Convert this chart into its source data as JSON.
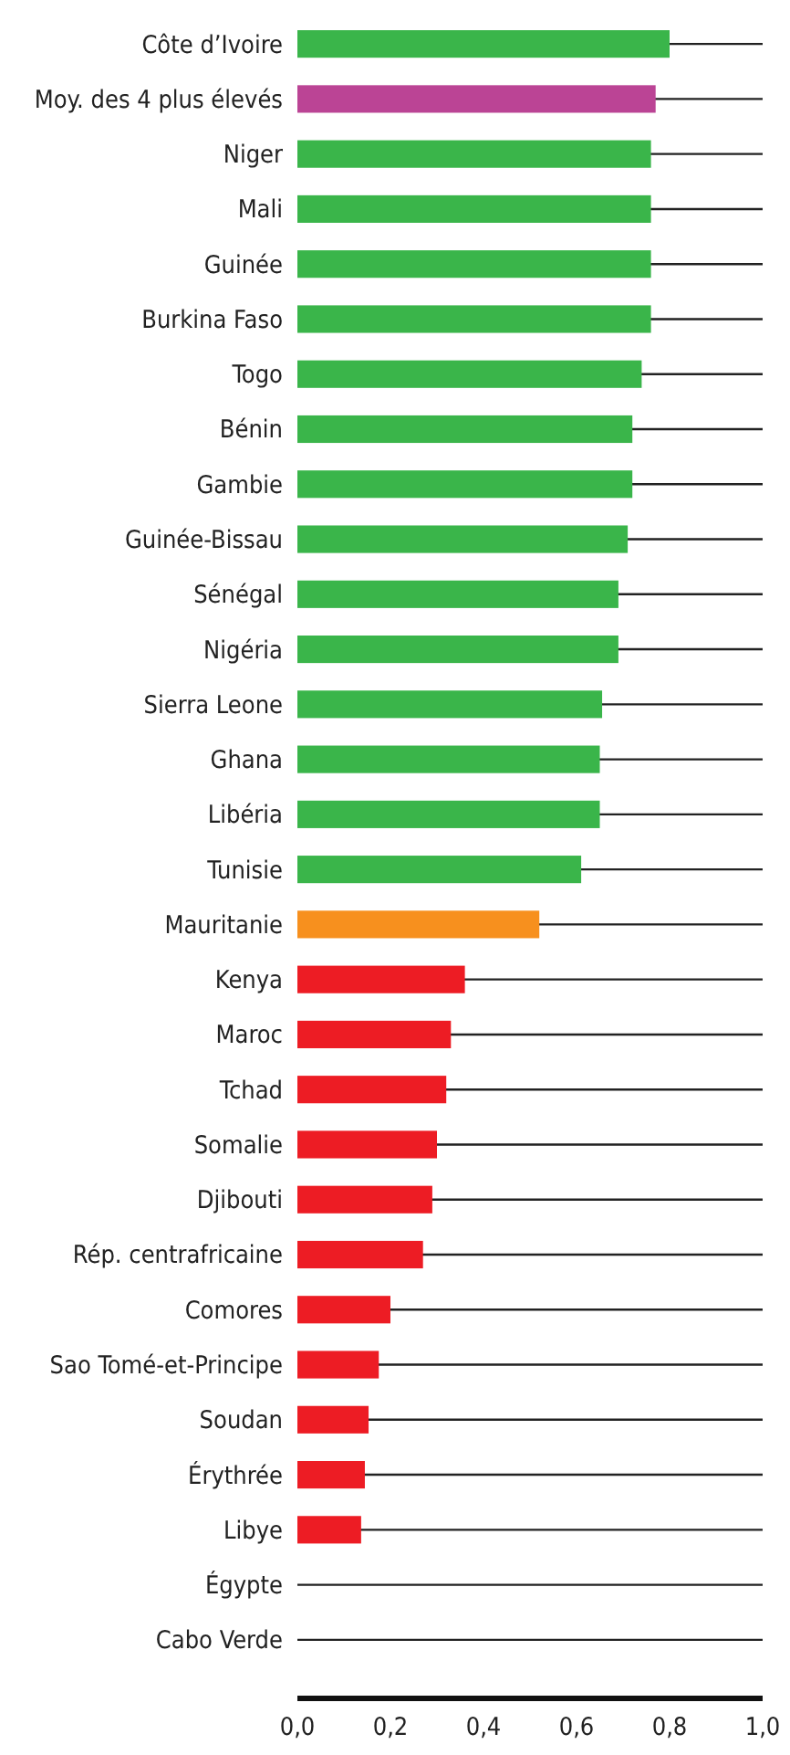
{
  "chart_data": {
    "type": "bar",
    "orientation": "horizontal",
    "categories": [
      "Côte d’Ivoire",
      "Moy. des 4 plus élevés",
      "Niger",
      "Mali",
      "Guinée",
      "Burkina Faso",
      "Togo",
      "Bénin",
      "Gambie",
      "Guinée-Bissau",
      "Sénégal",
      "Nigéria",
      "Sierra Leone",
      "Ghana",
      "Libéria",
      "Tunisie",
      "Mauritanie",
      "Kenya",
      "Maroc",
      "Tchad",
      "Somalie",
      "Djibouti",
      "Rép. centrafricaine",
      "Comores",
      "Sao Tomé-et-Principe",
      "Soudan",
      "Érythrée",
      "Libye",
      "Égypte",
      "Cabo Verde"
    ],
    "values": [
      0.8,
      0.77,
      0.76,
      0.76,
      0.76,
      0.76,
      0.74,
      0.72,
      0.72,
      0.71,
      0.69,
      0.69,
      0.655,
      0.65,
      0.65,
      0.61,
      0.52,
      0.36,
      0.33,
      0.32,
      0.3,
      0.29,
      0.27,
      0.2,
      0.175,
      0.153,
      0.145,
      0.137,
      0,
      0
    ],
    "colors": [
      "#3ab54a",
      "#bb4495",
      "#3ab54a",
      "#3ab54a",
      "#3ab54a",
      "#3ab54a",
      "#3ab54a",
      "#3ab54a",
      "#3ab54a",
      "#3ab54a",
      "#3ab54a",
      "#3ab54a",
      "#3ab54a",
      "#3ab54a",
      "#3ab54a",
      "#3ab54a",
      "#f7901e",
      "#ed1c24",
      "#ed1c24",
      "#ed1c24",
      "#ed1c24",
      "#ed1c24",
      "#ed1c24",
      "#ed1c24",
      "#ed1c24",
      "#ed1c24",
      "#ed1c24",
      "#ed1c24",
      "#ed1c24",
      "#ed1c24"
    ],
    "xlim": [
      0,
      1
    ],
    "xticks": [
      {
        "value": 0,
        "label": "0,0"
      },
      {
        "value": 0.2,
        "label": "0,2"
      },
      {
        "value": 0.4,
        "label": "0,4"
      },
      {
        "value": 0.6,
        "label": "0,6"
      },
      {
        "value": 0.8,
        "label": "0,8"
      },
      {
        "value": 1,
        "label": "1,0"
      }
    ],
    "grid": "y"
  }
}
